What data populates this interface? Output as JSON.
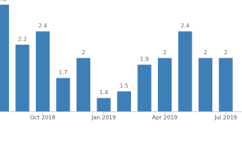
{
  "chart_data": {
    "type": "bar",
    "categories": [
      null,
      null,
      "Oct 2018",
      null,
      null,
      "Jan 2019",
      null,
      null,
      "Apr 2019",
      null,
      null,
      "Jul 2019"
    ],
    "values": [
      2.8,
      2.2,
      2.4,
      1.7,
      2,
      1.4,
      1.5,
      1.9,
      2,
      2.4,
      2,
      2
    ],
    "color": "#3f7fb8",
    "ylim": [
      1.2,
      2.87
    ]
  }
}
